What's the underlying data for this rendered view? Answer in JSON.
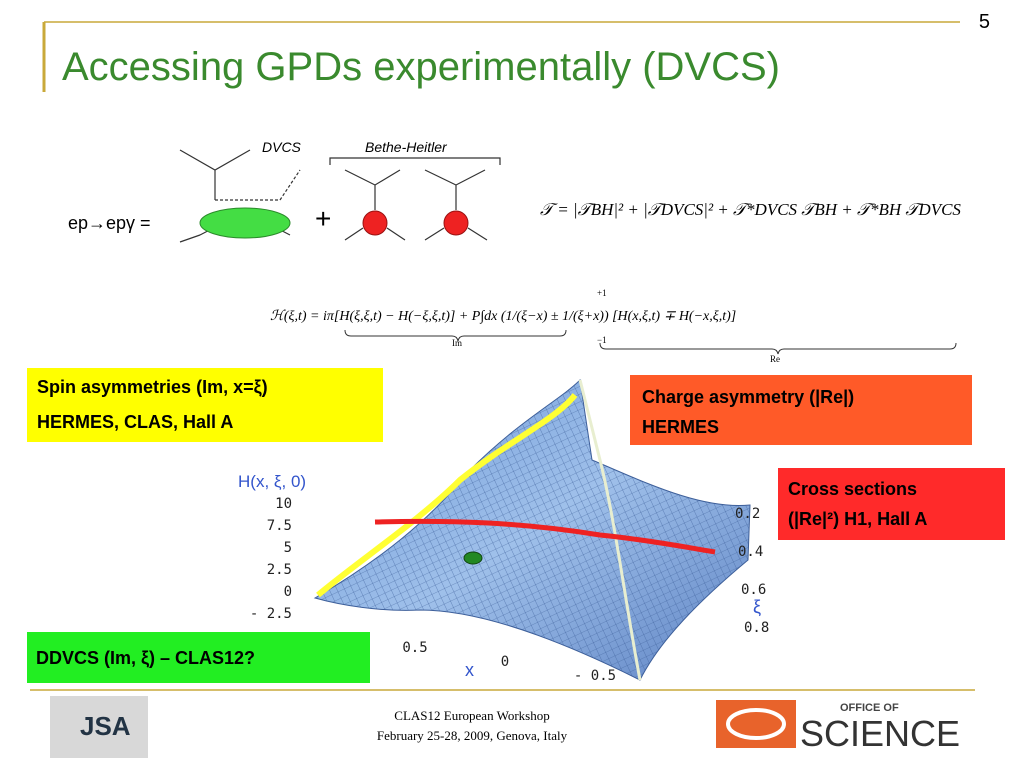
{
  "slide_number": "5",
  "title": "Accessing GPDs experimentally (DVCS)",
  "diagram": {
    "dvcs_label": "DVCS",
    "bh_label": "Bethe-Heitler",
    "reaction": "ep→epγ =",
    "plus": "+"
  },
  "formulas": {
    "amplitude": "𝒯 = |𝒯BH|² + |𝒯DVCS|² + 𝒯*DVCS 𝒯BH + 𝒯*BH 𝒯DVCS",
    "gpd": "ℋ(ξ,t) = iπ[H(ξ,ξ,t) − H(−ξ,ξ,t)] + P∫dx (1/(ξ−x) ± 1/(ξ+x)) [H(x,ξ,t) ∓ H(−x,ξ,t)]",
    "integral_upper": "+1",
    "integral_lower": "−1",
    "im_label": "Im",
    "re_label": "Re"
  },
  "plot": {
    "z_label": "H(x, ξ, 0)",
    "z_ticks": [
      "10",
      "7.5",
      "5",
      "2.5",
      "0",
      "- 2.5"
    ],
    "x_label": "x",
    "x_ticks": [
      "0.5",
      "0",
      "- 0.5"
    ],
    "xi_label": "ξ",
    "xi_ticks": [
      "0.2",
      "0.4",
      "0.6",
      "0.8"
    ]
  },
  "boxes": [
    {
      "lines": [
        "Spin asymmetries (Im, x=ξ)",
        "HERMES, CLAS, Hall A"
      ]
    },
    {
      "lines": [
        "Charge asymmetry  (|Re|)",
        "HERMES"
      ]
    },
    {
      "lines": [
        "Cross sections",
        "(|Re|²) H1, Hall A"
      ]
    },
    {
      "lines": [
        "DDVCS (Im, ξ) – CLAS12?"
      ]
    }
  ],
  "footer": {
    "lines": [
      "CLAS12 European Workshop",
      "February 25-28, 2009, Genova, Italy"
    ],
    "logos": [
      "JSA",
      "OFFICE OF",
      "SCIENCE"
    ]
  }
}
